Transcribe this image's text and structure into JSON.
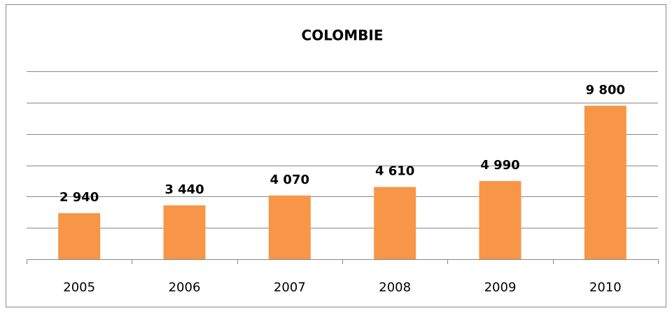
{
  "chart_data": {
    "type": "bar",
    "title": "COLOMBIE",
    "categories": [
      "2005",
      "2006",
      "2007",
      "2008",
      "2009",
      "2010"
    ],
    "values": [
      2940,
      3440,
      4070,
      4610,
      4990,
      9800
    ],
    "value_labels": [
      "2 940",
      "3 440",
      "4 070",
      "4 610",
      "4 990",
      "9 800"
    ],
    "color": "#f79646",
    "ylim": [
      0,
      12000
    ],
    "yticks": [
      0,
      2000,
      4000,
      6000,
      8000,
      10000,
      12000
    ],
    "grid": true
  }
}
